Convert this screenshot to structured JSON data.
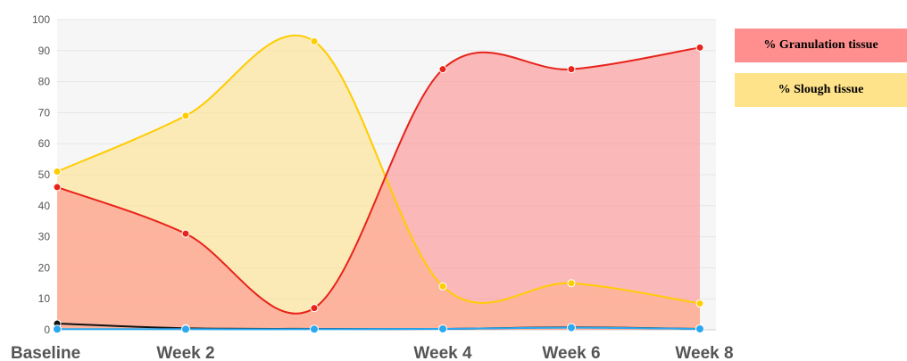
{
  "chart_data": {
    "type": "area",
    "categories": [
      "Baseline",
      "Week 2",
      "",
      "Week 4",
      "Week 6",
      "Week 8"
    ],
    "ylim": [
      0,
      100
    ],
    "yticks": [
      0,
      10,
      20,
      30,
      40,
      50,
      60,
      70,
      80,
      90,
      100
    ],
    "grid": true,
    "legend_position": "right",
    "series": [
      {
        "name": "% Granulation tissue",
        "values": [
          46,
          31,
          7,
          84,
          84,
          91
        ],
        "color": "#e8231a",
        "fill": "#ff8f8f"
      },
      {
        "name": "% Slough tissue",
        "values": [
          51,
          69,
          93,
          14,
          15,
          8.5
        ],
        "color": "#ffcc00",
        "fill": "#ffe38a"
      },
      {
        "name": "",
        "values": [
          2,
          0.5,
          0.3,
          0.3,
          0.8,
          0.3
        ],
        "color": "#111111",
        "fill": "none"
      },
      {
        "name": "",
        "values": [
          0.2,
          0.2,
          0.2,
          0.3,
          0.7,
          0.3
        ],
        "color": "#2ba8f0",
        "fill": "none"
      }
    ]
  }
}
